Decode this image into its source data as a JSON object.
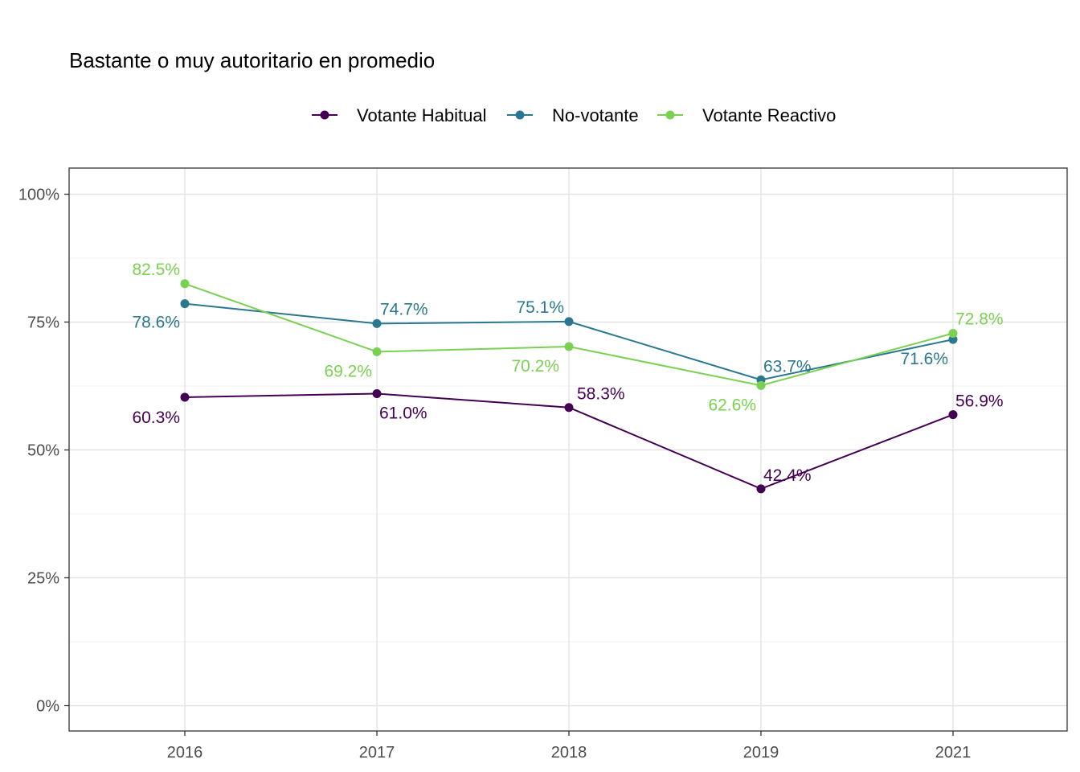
{
  "chart_data": {
    "type": "line",
    "title": "Bastante o muy autoritario en promedio",
    "xlabel": "",
    "ylabel": "",
    "x": [
      "2016",
      "2017",
      "2018",
      "2019",
      "2021"
    ],
    "y_ticks": [
      "0%",
      "25%",
      "50%",
      "75%",
      "100%"
    ],
    "ylim": [
      0,
      100
    ],
    "grid": true,
    "legend_position": "top",
    "series": [
      {
        "name": "Votante Habitual",
        "color": "#440154",
        "values": [
          60.3,
          61.0,
          58.3,
          42.4,
          56.9
        ],
        "labels": [
          "60.3%",
          "61.0%",
          "58.3%",
          "42.4%",
          "56.9%"
        ]
      },
      {
        "name": "No-votante",
        "color": "#2a788e",
        "values": [
          78.6,
          74.7,
          75.1,
          63.7,
          71.6
        ],
        "labels": [
          "78.6%",
          "74.7%",
          "75.1%",
          "63.7%",
          "71.6%"
        ]
      },
      {
        "name": "Votante Reactivo",
        "color": "#7ad151",
        "values": [
          82.5,
          69.2,
          70.2,
          62.6,
          72.8
        ],
        "labels": [
          "82.5%",
          "69.2%",
          "70.2%",
          "62.6%",
          "72.8%"
        ]
      }
    ]
  }
}
